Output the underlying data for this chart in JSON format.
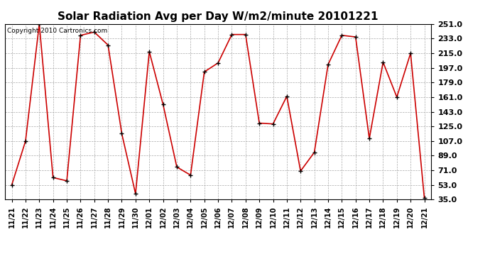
{
  "title": "Solar Radiation Avg per Day W/m2/minute 20101221",
  "copyright_text": "Copyright 2010 Cartronics.com",
  "x_labels": [
    "11/21",
    "11/22",
    "11/23",
    "11/24",
    "11/25",
    "11/26",
    "11/27",
    "11/28",
    "11/29",
    "11/30",
    "12/01",
    "12/02",
    "12/03",
    "12/04",
    "12/05",
    "12/06",
    "12/07",
    "12/08",
    "12/09",
    "12/10",
    "12/11",
    "12/12",
    "12/13",
    "12/14",
    "12/15",
    "12/16",
    "12/17",
    "12/18",
    "12/19",
    "12/20",
    "12/21"
  ],
  "y_values": [
    53,
    107,
    251,
    62,
    58,
    237,
    241,
    225,
    116,
    42,
    217,
    152,
    75,
    65,
    192,
    203,
    238,
    238,
    129,
    128,
    162,
    70,
    93,
    201,
    237,
    235,
    110,
    204,
    161,
    215,
    37
  ],
  "line_color": "#cc0000",
  "marker_color": "#000000",
  "bg_color": "#ffffff",
  "grid_color": "#aaaaaa",
  "y_ticks": [
    35.0,
    53.0,
    71.0,
    89.0,
    107.0,
    125.0,
    143.0,
    161.0,
    179.0,
    197.0,
    215.0,
    233.0,
    251.0
  ],
  "y_min": 35.0,
  "y_max": 251.0,
  "title_fontsize": 11,
  "copyright_fontsize": 6.5,
  "tick_fontsize": 7,
  "ytick_fontsize": 8
}
